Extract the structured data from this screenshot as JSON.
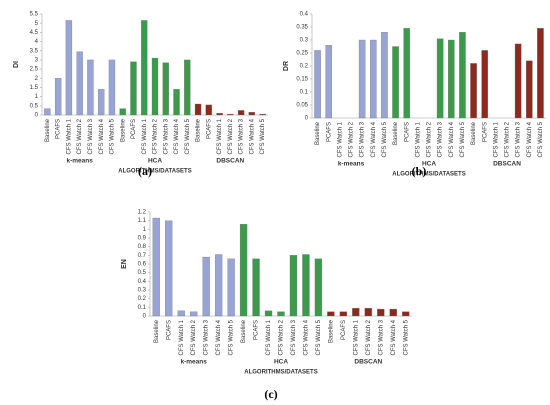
{
  "chart_data": [
    {
      "type": "bar",
      "panel": "(a)",
      "ylabel": "DI",
      "xlabel": "ALGORITHMS/DATASETS",
      "ylim": [
        0,
        5.5
      ],
      "yticks": [
        0,
        0.5,
        1,
        1.5,
        2,
        2.5,
        3,
        3.5,
        4,
        4.5,
        5,
        5.5
      ],
      "groups": [
        {
          "name": "k-means",
          "color": "#98a4d4",
          "categories": [
            "Baseline",
            "PCAFS",
            "CFS Watch 1",
            "CFS Watch 2",
            "CFS Watch 3",
            "CFS Watch 4",
            "CFS Watch 5"
          ],
          "values": [
            0.35,
            2.0,
            5.15,
            3.45,
            3.0,
            1.4,
            3.0
          ]
        },
        {
          "name": "HCA",
          "color": "#3c9a4c",
          "categories": [
            "Baseline",
            "PCAFS",
            "CFS Watch 1",
            "CFS Watch 2",
            "CFS Watch 3",
            "CFS Watch 4",
            "CFS Watch 5"
          ],
          "values": [
            0.35,
            2.9,
            5.15,
            3.1,
            2.85,
            1.4,
            3.0
          ]
        },
        {
          "name": "DBSCAN",
          "color": "#8c2a1e",
          "categories": [
            "Baseline",
            "PCAFS",
            "CFS Watch 1",
            "CFS Watch 2",
            "CFS Watch 3",
            "CFS Watch 4",
            "CFS Watch 5"
          ],
          "values": [
            0.6,
            0.55,
            0.1,
            0.05,
            0.25,
            0.15,
            0.05
          ]
        }
      ]
    },
    {
      "type": "bar",
      "panel": "(b)",
      "ylabel": "DR",
      "xlabel": "ALGORITHMS/DATASETS",
      "ylim": [
        0,
        0.4
      ],
      "yticks": [
        0,
        0.05,
        0.1,
        0.15,
        0.2,
        0.25,
        0.3,
        0.35,
        0.4
      ],
      "groups": [
        {
          "name": "k-means",
          "color": "#98a4d4",
          "categories": [
            "Baseline",
            "PCAFS",
            "CFS Watch 1",
            "CFS Watch 2",
            "CFS Watch 3",
            "CFS Watch 4",
            "CFS Watch 5"
          ],
          "values": [
            0.26,
            0.28,
            0,
            0,
            0.3,
            0.3,
            0.33
          ]
        },
        {
          "name": "HCA",
          "color": "#3c9a4c",
          "categories": [
            "Baseline",
            "PCAFS",
            "CFS Watch 1",
            "CFS Watch 2",
            "CFS Watch 3",
            "CFS Watch 4",
            "CFS Watch 5"
          ],
          "values": [
            0.275,
            0.345,
            0,
            0,
            0.305,
            0.3,
            0.33
          ]
        },
        {
          "name": "DBSCAN",
          "color": "#8c2a1e",
          "categories": [
            "Baseline",
            "PCAFS",
            "CFS Watch 1",
            "CFS Watch 2",
            "CFS Watch 3",
            "CFS Watch 4",
            "CFS Watch 5"
          ],
          "values": [
            0.21,
            0.26,
            0,
            0,
            0.285,
            0.22,
            0.345
          ]
        }
      ]
    },
    {
      "type": "bar",
      "panel": "(c)",
      "ylabel": "EN",
      "xlabel": "ALGORITHMS/DATASETS",
      "ylim": [
        0,
        1.2
      ],
      "yticks": [
        0,
        0.1,
        0.2,
        0.3,
        0.4,
        0.5,
        0.6,
        0.7,
        0.8,
        0.9,
        1,
        1.1,
        1.2
      ],
      "groups": [
        {
          "name": "k-means",
          "color": "#98a4d4",
          "categories": [
            "Baseline",
            "PCAFS",
            "CFS Watch 1",
            "CFS Watch 2",
            "CFS Watch 3",
            "CFS Watch 4",
            "CFS Watch 5"
          ],
          "values": [
            1.13,
            1.1,
            0.06,
            0.05,
            0.68,
            0.71,
            0.66
          ]
        },
        {
          "name": "HCA",
          "color": "#3c9a4c",
          "categories": [
            "Baseline",
            "PCAFS",
            "CFS Watch 1",
            "CFS Watch 2",
            "CFS Watch 3",
            "CFS Watch 4",
            "CFS Watch 5"
          ],
          "values": [
            1.06,
            0.66,
            0.06,
            0.05,
            0.7,
            0.71,
            0.66
          ]
        },
        {
          "name": "DBSCAN",
          "color": "#8c2a1e",
          "categories": [
            "Baseline",
            "PCAFS",
            "CFS Watch 1",
            "CFS Watch 2",
            "CFS Watch 3",
            "CFS Watch 4",
            "CFS Watch 5"
          ],
          "values": [
            0.05,
            0.05,
            0.09,
            0.09,
            0.08,
            0.08,
            0.05
          ]
        }
      ]
    }
  ]
}
